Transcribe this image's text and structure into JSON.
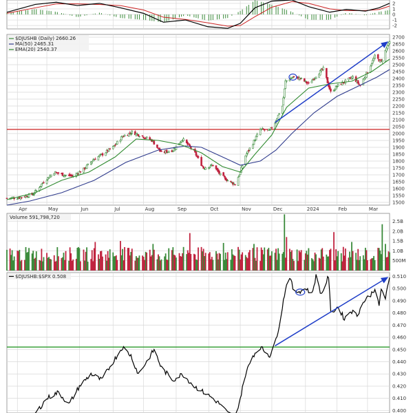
{
  "chart_data": {
    "type": "candlestick",
    "colors": {
      "up": "#3a8a3a",
      "down": "#c0233f",
      "ma50": "#2e3a8c",
      "ema20": "#2f8a2f",
      "resistance": "#cc2222",
      "support": "#2a9a2a",
      "trend": "#1f3ec8",
      "highlight": "#1f3ec8",
      "ratio": "#000000",
      "macd": "#000000",
      "macd_signal": "#cc2222",
      "macd_hist": "#3a8a3a",
      "grid": "#d8d8d8",
      "panel_bg": "#ffffff",
      "legend_bg": "#f2f2f2"
    },
    "x_tick_labels": [
      {
        "label": "Apr",
        "date": "2023-04-03"
      },
      {
        "label": "May",
        "date": "2023-05-01"
      },
      {
        "label": "Jun",
        "date": "2023-06-01"
      },
      {
        "label": "Jul",
        "date": "2023-07-03"
      },
      {
        "label": "Aug",
        "date": "2023-08-01"
      },
      {
        "label": "Sep",
        "date": "2023-09-01"
      },
      {
        "label": "Oct",
        "date": "2023-10-02"
      },
      {
        "label": "Nov",
        "date": "2023-11-01"
      },
      {
        "label": "Dec",
        "date": "2023-12-01"
      },
      {
        "label": "2024",
        "date": "2024-01-02"
      },
      {
        "label": "Feb",
        "date": "2024-02-01"
      },
      {
        "label": "Mar",
        "date": "2024-03-01"
      }
    ],
    "x_range": [
      "2023-03-24",
      "2024-03-22"
    ],
    "macd_panel": {
      "y_ticks": [
        "2",
        "1",
        "0",
        "-1",
        "-2"
      ],
      "ylim": [
        -2.6,
        2.6
      ],
      "macd": [
        [
          "2023-03-24",
          0.4
        ],
        [
          "2023-04-20",
          1.8
        ],
        [
          "2023-05-10",
          2.2
        ],
        [
          "2023-05-30",
          1.6
        ],
        [
          "2023-06-20",
          2.0
        ],
        [
          "2023-07-10",
          1.2
        ],
        [
          "2023-08-01",
          0.2
        ],
        [
          "2023-08-20",
          -1.4
        ],
        [
          "2023-09-10",
          -1.0
        ],
        [
          "2023-10-01",
          -2.2
        ],
        [
          "2023-10-20",
          -2.5
        ],
        [
          "2023-11-01",
          -1.6
        ],
        [
          "2023-11-15",
          1.2
        ],
        [
          "2023-12-01",
          2.4
        ],
        [
          "2023-12-20",
          2.6
        ],
        [
          "2024-01-05",
          1.4
        ],
        [
          "2024-01-25",
          0.4
        ],
        [
          "2024-02-10",
          0.9
        ],
        [
          "2024-02-28",
          0.6
        ],
        [
          "2024-03-12",
          1.2
        ],
        [
          "2024-03-22",
          2.0
        ]
      ],
      "signal": [
        [
          "2023-03-24",
          0.2
        ],
        [
          "2023-04-20",
          1.2
        ],
        [
          "2023-05-10",
          1.9
        ],
        [
          "2023-05-30",
          1.9
        ],
        [
          "2023-06-20",
          1.8
        ],
        [
          "2023-07-10",
          1.6
        ],
        [
          "2023-08-01",
          0.8
        ],
        [
          "2023-08-20",
          -0.5
        ],
        [
          "2023-09-10",
          -0.9
        ],
        [
          "2023-10-01",
          -1.5
        ],
        [
          "2023-10-20",
          -2.1
        ],
        [
          "2023-11-01",
          -2.0
        ],
        [
          "2023-11-15",
          -0.4
        ],
        [
          "2023-12-01",
          1.3
        ],
        [
          "2023-12-20",
          2.3
        ],
        [
          "2024-01-05",
          2.0
        ],
        [
          "2024-01-25",
          1.0
        ],
        [
          "2024-02-10",
          0.7
        ],
        [
          "2024-02-28",
          0.7
        ],
        [
          "2024-03-12",
          0.9
        ],
        [
          "2024-03-22",
          1.5
        ]
      ]
    },
    "price_panel": {
      "legend": [
        "$DJUSHB (Daily) 2660.26",
        "MA(50) 2465.31",
        "EMA(20) 2540.37"
      ],
      "y_ticks": [
        1500,
        1550,
        1600,
        1650,
        1700,
        1750,
        1800,
        1850,
        1900,
        1950,
        2000,
        2050,
        2100,
        2150,
        2200,
        2250,
        2300,
        2350,
        2400,
        2450,
        2500,
        2550,
        2600,
        2650,
        2700
      ],
      "ylim": [
        1480,
        2720
      ],
      "resistance_level": 2030,
      "trend_line": {
        "from": [
          "2023-12-04",
          2080
        ],
        "to": [
          "2024-03-20",
          2665
        ]
      },
      "highlight_circle": {
        "date": "2023-12-21",
        "value": 2410
      },
      "close": [
        [
          "2023-03-24",
          1530
        ],
        [
          "2023-04-05",
          1535
        ],
        [
          "2023-04-18",
          1560
        ],
        [
          "2023-04-28",
          1650
        ],
        [
          "2023-05-08",
          1720
        ],
        [
          "2023-05-17",
          1700
        ],
        [
          "2023-05-26",
          1690
        ],
        [
          "2023-06-05",
          1740
        ],
        [
          "2023-06-14",
          1810
        ],
        [
          "2023-06-23",
          1850
        ],
        [
          "2023-07-03",
          1900
        ],
        [
          "2023-07-12",
          1980
        ],
        [
          "2023-07-21",
          2010
        ],
        [
          "2023-07-31",
          1980
        ],
        [
          "2023-08-09",
          1950
        ],
        [
          "2023-08-18",
          1860
        ],
        [
          "2023-08-29",
          1880
        ],
        [
          "2023-09-07",
          1960
        ],
        [
          "2023-09-18",
          1870
        ],
        [
          "2023-09-27",
          1750
        ],
        [
          "2023-10-06",
          1770
        ],
        [
          "2023-10-13",
          1700
        ],
        [
          "2023-10-20",
          1660
        ],
        [
          "2023-10-27",
          1630
        ],
        [
          "2023-11-01",
          1720
        ],
        [
          "2023-11-06",
          1840
        ],
        [
          "2023-11-13",
          1930
        ],
        [
          "2023-11-20",
          2030
        ],
        [
          "2023-11-29",
          2020
        ],
        [
          "2023-12-04",
          2080
        ],
        [
          "2023-12-11",
          2200
        ],
        [
          "2023-12-14",
          2380
        ],
        [
          "2023-12-21",
          2410
        ],
        [
          "2023-12-28",
          2400
        ],
        [
          "2024-01-05",
          2360
        ],
        [
          "2024-01-12",
          2420
        ],
        [
          "2024-01-19",
          2470
        ],
        [
          "2024-01-26",
          2300
        ],
        [
          "2024-02-02",
          2350
        ],
        [
          "2024-02-09",
          2380
        ],
        [
          "2024-02-16",
          2410
        ],
        [
          "2024-02-23",
          2350
        ],
        [
          "2024-03-01",
          2450
        ],
        [
          "2024-03-08",
          2560
        ],
        [
          "2024-03-14",
          2520
        ],
        [
          "2024-03-20",
          2640
        ],
        [
          "2024-03-22",
          2660
        ]
      ],
      "ma50": [
        [
          "2023-03-24",
          1480
        ],
        [
          "2023-04-15",
          1510
        ],
        [
          "2023-05-15",
          1570
        ],
        [
          "2023-06-15",
          1660
        ],
        [
          "2023-07-15",
          1790
        ],
        [
          "2023-08-15",
          1880
        ],
        [
          "2023-09-10",
          1910
        ],
        [
          "2023-09-25",
          1900
        ],
        [
          "2023-10-15",
          1830
        ],
        [
          "2023-11-01",
          1770
        ],
        [
          "2023-11-20",
          1800
        ],
        [
          "2023-12-05",
          1880
        ],
        [
          "2023-12-20",
          2000
        ],
        [
          "2024-01-10",
          2150
        ],
        [
          "2024-02-01",
          2270
        ],
        [
          "2024-02-20",
          2340
        ],
        [
          "2024-03-10",
          2410
        ],
        [
          "2024-03-22",
          2465
        ]
      ],
      "ema20": [
        [
          "2023-03-24",
          1520
        ],
        [
          "2023-04-20",
          1570
        ],
        [
          "2023-05-15",
          1660
        ],
        [
          "2023-06-10",
          1720
        ],
        [
          "2023-07-05",
          1830
        ],
        [
          "2023-07-25",
          1960
        ],
        [
          "2023-08-15",
          1950
        ],
        [
          "2023-09-05",
          1920
        ],
        [
          "2023-09-25",
          1860
        ],
        [
          "2023-10-15",
          1760
        ],
        [
          "2023-11-01",
          1720
        ],
        [
          "2023-11-15",
          1850
        ],
        [
          "2023-12-01",
          1990
        ],
        [
          "2023-12-15",
          2190
        ],
        [
          "2024-01-05",
          2330
        ],
        [
          "2024-01-25",
          2360
        ],
        [
          "2024-02-15",
          2380
        ],
        [
          "2024-03-05",
          2450
        ],
        [
          "2024-03-22",
          2540
        ]
      ]
    },
    "volume_panel": {
      "legend": "Volume 591,798,720",
      "y_ticks": [
        "500M",
        "1.0B",
        "1.5B",
        "2.0B",
        "2.5B"
      ],
      "ylim": [
        0,
        2.9
      ],
      "spikes": [
        {
          "date": "2023-06-16",
          "value": 1.45
        },
        {
          "date": "2023-07-10",
          "value": 1.5
        },
        {
          "date": "2023-08-10",
          "value": 1.35
        },
        {
          "date": "2023-09-14",
          "value": 1.9
        },
        {
          "date": "2023-10-16",
          "value": 1.4
        },
        {
          "date": "2023-11-14",
          "value": 1.35
        },
        {
          "date": "2023-12-13",
          "value": 2.85
        },
        {
          "date": "2023-12-15",
          "value": 1.7
        },
        {
          "date": "2024-01-29",
          "value": 1.95
        },
        {
          "date": "2024-02-15",
          "value": 1.45
        },
        {
          "date": "2024-03-15",
          "value": 2.35
        },
        {
          "date": "2024-03-18",
          "value": 1.35
        }
      ]
    },
    "ratio_panel": {
      "legend": "$DJUSHB:$SPX 0.508",
      "y_ticks": [
        "0.400",
        "0.410",
        "0.420",
        "0.430",
        "0.440",
        "0.450",
        "0.460",
        "0.470",
        "0.480",
        "0.490",
        "0.500",
        "0.510"
      ],
      "ylim": [
        0.398,
        0.513
      ],
      "support_level": 0.452,
      "trend_line": {
        "from": [
          "2023-12-04",
          0.453
        ],
        "to": [
          "2024-03-20",
          0.509
        ]
      },
      "highlight_circle": {
        "date": "2023-12-28",
        "value": 0.497
      },
      "values": [
        [
          "2023-04-18",
          0.395
        ],
        [
          "2023-05-01",
          0.41
        ],
        [
          "2023-05-12",
          0.415
        ],
        [
          "2023-05-22",
          0.405
        ],
        [
          "2023-06-01",
          0.42
        ],
        [
          "2023-06-12",
          0.43
        ],
        [
          "2023-06-22",
          0.425
        ],
        [
          "2023-07-03",
          0.44
        ],
        [
          "2023-07-12",
          0.452
        ],
        [
          "2023-07-20",
          0.445
        ],
        [
          "2023-07-27",
          0.43
        ],
        [
          "2023-08-04",
          0.44
        ],
        [
          "2023-08-11",
          0.45
        ],
        [
          "2023-08-18",
          0.435
        ],
        [
          "2023-08-29",
          0.425
        ],
        [
          "2023-09-07",
          0.43
        ],
        [
          "2023-09-18",
          0.42
        ],
        [
          "2023-09-27",
          0.415
        ],
        [
          "2023-10-06",
          0.41
        ],
        [
          "2023-10-13",
          0.405
        ],
        [
          "2023-10-20",
          0.398
        ],
        [
          "2023-10-27",
          0.395
        ],
        [
          "2023-11-01",
          0.41
        ],
        [
          "2023-11-06",
          0.43
        ],
        [
          "2023-11-13",
          0.445
        ],
        [
          "2023-11-20",
          0.452
        ],
        [
          "2023-11-29",
          0.445
        ],
        [
          "2023-12-04",
          0.455
        ],
        [
          "2023-12-08",
          0.47
        ],
        [
          "2023-12-14",
          0.5
        ],
        [
          "2023-12-18",
          0.51
        ],
        [
          "2023-12-22",
          0.497
        ],
        [
          "2023-12-28",
          0.498
        ],
        [
          "2024-01-03",
          0.5
        ],
        [
          "2024-01-08",
          0.495
        ],
        [
          "2024-01-12",
          0.51
        ],
        [
          "2024-01-17",
          0.495
        ],
        [
          "2024-01-24",
          0.51
        ],
        [
          "2024-01-26",
          0.48
        ],
        [
          "2024-02-02",
          0.485
        ],
        [
          "2024-02-08",
          0.475
        ],
        [
          "2024-02-14",
          0.482
        ],
        [
          "2024-02-20",
          0.478
        ],
        [
          "2024-02-27",
          0.49
        ],
        [
          "2024-03-04",
          0.495
        ],
        [
          "2024-03-08",
          0.5
        ],
        [
          "2024-03-12",
          0.485
        ],
        [
          "2024-03-14",
          0.5
        ],
        [
          "2024-03-18",
          0.492
        ],
        [
          "2024-03-22",
          0.508
        ]
      ]
    }
  }
}
